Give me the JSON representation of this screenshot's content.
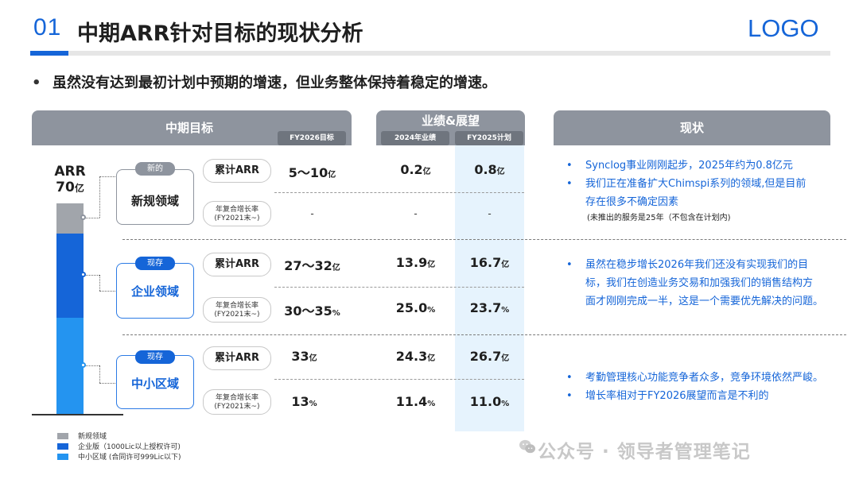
{
  "header": {
    "number": "01",
    "title": "中期ARR针对目标的现状分析",
    "logo": "LOGO"
  },
  "bullet": "虽然没有达到最初计划中预期的增速，但业务整体保持着稳定的增速。",
  "columns": {
    "goal": "中期目标",
    "perf": "业绩&展望",
    "status": "现状",
    "fy2026": "FY2026目标",
    "y2024": "2024年业绩",
    "fy2025": "FY2025计划"
  },
  "arr": {
    "label": "ARR",
    "value": "70",
    "unit": "亿"
  },
  "segments": [
    {
      "badge": "新的",
      "name": "新规领域",
      "rows": [
        {
          "metric": "累计ARR",
          "fy2026": "5～10",
          "fy2026_unit": "亿",
          "y2024": "0.2",
          "y2024_unit": "亿",
          "fy2025": "0.8",
          "fy2025_unit": "亿"
        },
        {
          "metric": "年复合增长率\n(FY2021末~)",
          "fy2026": "-",
          "fy2026_unit": "",
          "y2024": "-",
          "y2024_unit": "",
          "fy2025": "-",
          "fy2025_unit": ""
        }
      ],
      "notes": [
        "Synclog事业刚刚起步，2025年约为0.8亿元",
        "我们正在准备扩大Chimspi系列的领域,但是目前",
        "存在很多不确定因素"
      ],
      "note_small": "(未推出的服务是25年（不包含在计划内)"
    },
    {
      "badge": "现存",
      "name": "企业领域",
      "rows": [
        {
          "metric": "累计ARR",
          "fy2026": "27～32",
          "fy2026_unit": "亿",
          "y2024": "13.9",
          "y2024_unit": "亿",
          "fy2025": "16.7",
          "fy2025_unit": "亿"
        },
        {
          "metric": "年复合增长率\n(FY2021末~)",
          "fy2026": "30～35",
          "fy2026_unit": "%",
          "y2024": "25.0",
          "y2024_unit": "%",
          "fy2025": "23.7",
          "fy2025_unit": "%"
        }
      ],
      "notes": [
        "虽然在稳步增长2026年我们还没有实现我们的目",
        "标，我们在创造业务交易和加强我们的销售结构方",
        "面才刚刚完成一半，这是一个需要优先解决的问题。"
      ]
    },
    {
      "badge": "现存",
      "name": "中小区域",
      "rows": [
        {
          "metric": "累计ARR",
          "fy2026": "33",
          "fy2026_unit": "亿",
          "y2024": "24.3",
          "y2024_unit": "亿",
          "fy2025": "26.7",
          "fy2025_unit": "亿"
        },
        {
          "metric": "年复合增长率\n(FY2021末~)",
          "fy2026": "13",
          "fy2026_unit": "%",
          "y2024": "11.4",
          "y2024_unit": "%",
          "fy2025": "11.0",
          "fy2025_unit": "%"
        }
      ],
      "notes": [
        "考勤管理核心功能竞争者众多，竞争环境依然严峻。",
        "增长率相对于FY2026展望而言是不利的"
      ]
    }
  ],
  "legend": [
    {
      "label": "新规领域",
      "color": "#a1a5ab"
    },
    {
      "label": "企业版（1000Lic以上授权许可)",
      "color": "#1565d8"
    },
    {
      "label": "中小区域 (合同许可999Lic以下)",
      "color": "#2494f0"
    }
  ],
  "watermark": "公众号 · 领导者管理笔记"
}
